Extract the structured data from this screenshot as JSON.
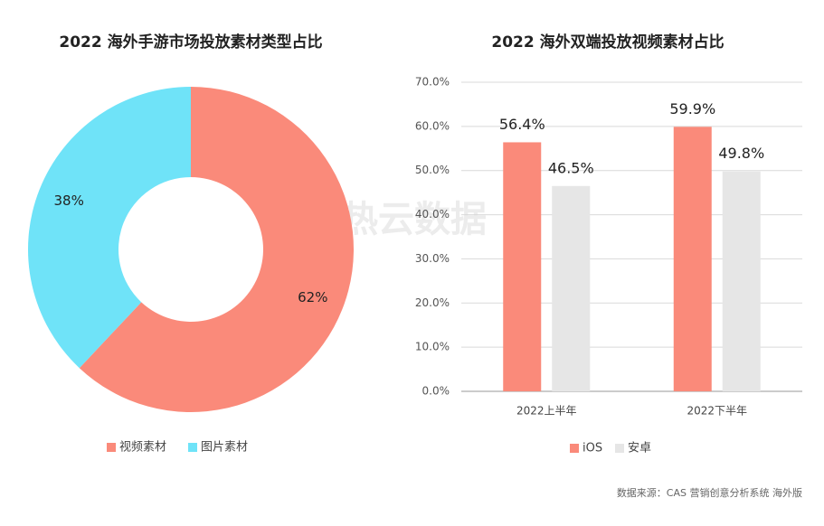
{
  "chart_data": [
    {
      "type": "pie",
      "title": "2022 海外手游市场投放素材类型占比",
      "categories": [
        "视频素材",
        "图片素材"
      ],
      "values": [
        62,
        38
      ],
      "value_labels": [
        "62%",
        "38%"
      ],
      "colors": [
        "#fa8a7a",
        "#6fe3f8"
      ],
      "legend": "bottom"
    },
    {
      "type": "bar",
      "title": "2022 海外双端投放视频素材占比",
      "categories": [
        "2022上半年",
        "2022下半年"
      ],
      "series": [
        {
          "name": "iOS",
          "color": "#fa8a7a",
          "values": [
            56.4,
            59.9
          ],
          "value_labels": [
            "56.4%",
            "59.9%"
          ]
        },
        {
          "name": "安卓",
          "color": "#e6e6e6",
          "values": [
            46.5,
            49.8
          ],
          "value_labels": [
            "46.5%",
            "49.8%"
          ]
        }
      ],
      "ylim": [
        0,
        70
      ],
      "yticks": [
        {
          "value": 0,
          "label": "0.0%"
        },
        {
          "value": 10,
          "label": "10.0%"
        },
        {
          "value": 20,
          "label": "20.0%"
        },
        {
          "value": 30,
          "label": "30.0%"
        },
        {
          "value": 40,
          "label": "40.0%"
        },
        {
          "value": 50,
          "label": "50.0%"
        },
        {
          "value": 60,
          "label": "60.0%"
        },
        {
          "value": 70,
          "label": "70.0%"
        }
      ],
      "grid": true,
      "legend": "bottom"
    }
  ],
  "watermark": "热云数据",
  "source": "数据来源：CAS 营销创意分析系统 海外版"
}
